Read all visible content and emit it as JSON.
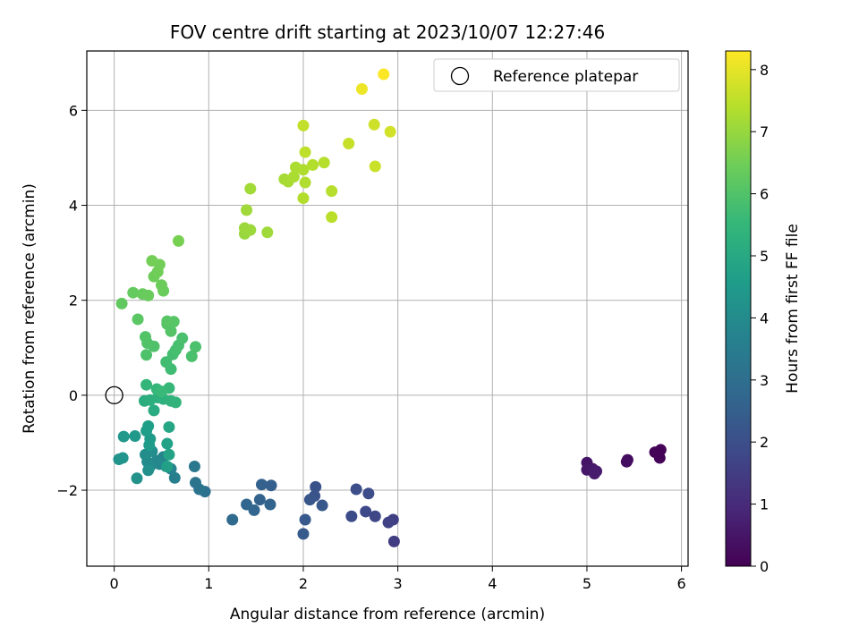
{
  "chart_data": {
    "type": "scatter",
    "title": "FOV centre drift starting at 2023/10/07 12:27:46",
    "xlabel": "Angular distance from reference (arcmin)",
    "ylabel": "Rotation from reference (arcmin)",
    "xlim": [
      -0.29,
      6.07
    ],
    "ylim": [
      -3.6,
      7.25
    ],
    "xticks": [
      "0",
      "1",
      "2",
      "3",
      "4",
      "5",
      "6"
    ],
    "yticks": [
      "−2",
      "0",
      "2",
      "4",
      "6"
    ],
    "grid": true,
    "legend": {
      "placement": "top-right",
      "label": "Reference platepar"
    },
    "reference_point": {
      "x": 0,
      "y": 0
    },
    "colorbar": {
      "label": "Hours from first FF file",
      "colormap": "viridis",
      "range": [
        0,
        8.3
      ],
      "ticks": [
        "0",
        "1",
        "2",
        "3",
        "4",
        "5",
        "6",
        "7",
        "8"
      ]
    },
    "points": [
      {
        "x": 5.78,
        "y": -1.15,
        "h": 0.05
      },
      {
        "x": 5.72,
        "y": -1.2,
        "h": 0.08
      },
      {
        "x": 5.77,
        "y": -1.32,
        "h": 0.1
      },
      {
        "x": 5.43,
        "y": -1.36,
        "h": 0.25
      },
      {
        "x": 5.42,
        "y": -1.4,
        "h": 0.28
      },
      {
        "x": 5.0,
        "y": -1.42,
        "h": 0.45
      },
      {
        "x": 5.0,
        "y": -1.57,
        "h": 0.5
      },
      {
        "x": 5.06,
        "y": -1.55,
        "h": 0.55
      },
      {
        "x": 5.1,
        "y": -1.6,
        "h": 0.6
      },
      {
        "x": 5.08,
        "y": -1.65,
        "h": 0.65
      },
      {
        "x": 2.96,
        "y": -3.08,
        "h": 1.5
      },
      {
        "x": 2.95,
        "y": -2.62,
        "h": 1.55
      },
      {
        "x": 2.9,
        "y": -2.68,
        "h": 1.62
      },
      {
        "x": 2.76,
        "y": -2.55,
        "h": 1.75
      },
      {
        "x": 2.66,
        "y": -2.45,
        "h": 1.82
      },
      {
        "x": 2.51,
        "y": -2.55,
        "h": 1.9
      },
      {
        "x": 2.69,
        "y": -2.07,
        "h": 1.95
      },
      {
        "x": 2.56,
        "y": -1.98,
        "h": 2.0
      },
      {
        "x": 2.13,
        "y": -1.93,
        "h": 2.1
      },
      {
        "x": 2.12,
        "y": -2.12,
        "h": 2.15
      },
      {
        "x": 2.07,
        "y": -2.2,
        "h": 2.2
      },
      {
        "x": 2.2,
        "y": -2.32,
        "h": 2.25
      },
      {
        "x": 2.02,
        "y": -2.62,
        "h": 2.3
      },
      {
        "x": 2.0,
        "y": -2.92,
        "h": 2.35
      },
      {
        "x": 1.66,
        "y": -1.9,
        "h": 2.5
      },
      {
        "x": 1.56,
        "y": -1.88,
        "h": 2.55
      },
      {
        "x": 1.54,
        "y": -2.2,
        "h": 2.6
      },
      {
        "x": 1.65,
        "y": -2.3,
        "h": 2.65
      },
      {
        "x": 1.48,
        "y": -2.42,
        "h": 2.7
      },
      {
        "x": 1.4,
        "y": -2.3,
        "h": 2.75
      },
      {
        "x": 1.25,
        "y": -2.62,
        "h": 2.85
      },
      {
        "x": 0.96,
        "y": -2.03,
        "h": 3.1
      },
      {
        "x": 0.9,
        "y": -1.98,
        "h": 3.15
      },
      {
        "x": 0.86,
        "y": -1.84,
        "h": 3.2
      },
      {
        "x": 0.85,
        "y": -1.5,
        "h": 3.3
      },
      {
        "x": 0.64,
        "y": -1.74,
        "h": 3.6
      },
      {
        "x": 0.6,
        "y": -1.55,
        "h": 3.7
      },
      {
        "x": 0.55,
        "y": -1.5,
        "h": 3.75
      },
      {
        "x": 0.52,
        "y": -1.3,
        "h": 3.8
      },
      {
        "x": 0.48,
        "y": -1.45,
        "h": 3.85
      },
      {
        "x": 0.45,
        "y": -1.38,
        "h": 3.9
      },
      {
        "x": 0.38,
        "y": -1.5,
        "h": 3.95
      },
      {
        "x": 0.35,
        "y": -1.4,
        "h": 4.0
      },
      {
        "x": 0.33,
        "y": -1.25,
        "h": 4.05
      },
      {
        "x": 0.4,
        "y": -1.18,
        "h": 4.1
      },
      {
        "x": 0.36,
        "y": -1.58,
        "h": 4.15
      },
      {
        "x": 0.24,
        "y": -1.75,
        "h": 4.2
      },
      {
        "x": 0.05,
        "y": -1.35,
        "h": 4.25
      },
      {
        "x": 0.09,
        "y": -1.32,
        "h": 4.3
      },
      {
        "x": 0.1,
        "y": -0.87,
        "h": 4.4
      },
      {
        "x": 0.22,
        "y": -0.86,
        "h": 4.45
      },
      {
        "x": 0.37,
        "y": -1.05,
        "h": 4.5
      },
      {
        "x": 0.38,
        "y": -0.92,
        "h": 4.55
      },
      {
        "x": 0.34,
        "y": -0.75,
        "h": 4.6
      },
      {
        "x": 0.36,
        "y": -0.65,
        "h": 4.65
      },
      {
        "x": 0.56,
        "y": -1.02,
        "h": 4.75
      },
      {
        "x": 0.58,
        "y": -1.25,
        "h": 4.8
      },
      {
        "x": 0.56,
        "y": -1.5,
        "h": 4.7
      },
      {
        "x": 0.58,
        "y": -0.67,
        "h": 4.9
      },
      {
        "x": 0.42,
        "y": -0.32,
        "h": 5.1
      },
      {
        "x": 0.32,
        "y": -0.12,
        "h": 5.15
      },
      {
        "x": 0.38,
        "y": -0.1,
        "h": 5.2
      },
      {
        "x": 0.46,
        "y": -0.05,
        "h": 5.25
      },
      {
        "x": 0.52,
        "y": -0.08,
        "h": 5.3
      },
      {
        "x": 0.6,
        "y": -0.12,
        "h": 5.35
      },
      {
        "x": 0.65,
        "y": -0.15,
        "h": 5.4
      },
      {
        "x": 0.34,
        "y": 0.22,
        "h": 5.45
      },
      {
        "x": 0.45,
        "y": 0.13,
        "h": 5.5
      },
      {
        "x": 0.58,
        "y": 0.15,
        "h": 5.55
      },
      {
        "x": 0.5,
        "y": 0.08,
        "h": 5.6
      },
      {
        "x": 0.6,
        "y": 0.55,
        "h": 5.7
      },
      {
        "x": 0.55,
        "y": 0.7,
        "h": 5.75
      },
      {
        "x": 0.62,
        "y": 0.86,
        "h": 5.8
      },
      {
        "x": 0.65,
        "y": 0.95,
        "h": 5.82
      },
      {
        "x": 0.68,
        "y": 1.05,
        "h": 5.85
      },
      {
        "x": 0.72,
        "y": 1.2,
        "h": 5.88
      },
      {
        "x": 0.82,
        "y": 0.82,
        "h": 5.9
      },
      {
        "x": 0.86,
        "y": 1.02,
        "h": 5.92
      },
      {
        "x": 0.34,
        "y": 0.85,
        "h": 5.95
      },
      {
        "x": 0.42,
        "y": 1.03,
        "h": 5.97
      },
      {
        "x": 0.35,
        "y": 1.1,
        "h": 6.0
      },
      {
        "x": 0.33,
        "y": 1.23,
        "h": 6.02
      },
      {
        "x": 0.56,
        "y": 1.5,
        "h": 6.05
      },
      {
        "x": 0.6,
        "y": 1.35,
        "h": 6.07
      },
      {
        "x": 0.63,
        "y": 1.55,
        "h": 6.1
      },
      {
        "x": 0.56,
        "y": 1.56,
        "h": 6.12
      },
      {
        "x": 0.25,
        "y": 1.6,
        "h": 6.15
      },
      {
        "x": 0.08,
        "y": 1.93,
        "h": 6.25
      },
      {
        "x": 0.2,
        "y": 2.16,
        "h": 6.3
      },
      {
        "x": 0.3,
        "y": 2.13,
        "h": 6.35
      },
      {
        "x": 0.36,
        "y": 2.1,
        "h": 6.38
      },
      {
        "x": 0.52,
        "y": 2.2,
        "h": 6.4
      },
      {
        "x": 0.5,
        "y": 2.32,
        "h": 6.42
      },
      {
        "x": 0.42,
        "y": 2.5,
        "h": 6.45
      },
      {
        "x": 0.46,
        "y": 2.6,
        "h": 6.48
      },
      {
        "x": 0.48,
        "y": 2.75,
        "h": 6.5
      },
      {
        "x": 0.4,
        "y": 2.83,
        "h": 6.52
      },
      {
        "x": 0.68,
        "y": 3.25,
        "h": 6.6
      },
      {
        "x": 1.38,
        "y": 3.4,
        "h": 7.0
      },
      {
        "x": 1.4,
        "y": 3.45,
        "h": 7.02
      },
      {
        "x": 1.44,
        "y": 3.48,
        "h": 7.05
      },
      {
        "x": 1.38,
        "y": 3.52,
        "h": 7.07
      },
      {
        "x": 1.62,
        "y": 3.43,
        "h": 7.1
      },
      {
        "x": 1.4,
        "y": 3.9,
        "h": 7.12
      },
      {
        "x": 1.44,
        "y": 4.35,
        "h": 7.15
      },
      {
        "x": 1.8,
        "y": 4.55,
        "h": 7.2
      },
      {
        "x": 1.84,
        "y": 4.5,
        "h": 7.22
      },
      {
        "x": 1.9,
        "y": 4.6,
        "h": 7.25
      },
      {
        "x": 1.92,
        "y": 4.8,
        "h": 7.27
      },
      {
        "x": 2.0,
        "y": 4.75,
        "h": 7.3
      },
      {
        "x": 2.02,
        "y": 4.48,
        "h": 7.32
      },
      {
        "x": 2.0,
        "y": 4.15,
        "h": 7.35
      },
      {
        "x": 2.1,
        "y": 4.85,
        "h": 7.37
      },
      {
        "x": 2.22,
        "y": 4.9,
        "h": 7.4
      },
      {
        "x": 2.3,
        "y": 4.3,
        "h": 7.42
      },
      {
        "x": 2.3,
        "y": 3.75,
        "h": 7.45
      },
      {
        "x": 2.02,
        "y": 5.12,
        "h": 7.5
      },
      {
        "x": 2.0,
        "y": 5.68,
        "h": 7.55
      },
      {
        "x": 2.48,
        "y": 5.3,
        "h": 7.6
      },
      {
        "x": 2.76,
        "y": 4.82,
        "h": 7.65
      },
      {
        "x": 2.75,
        "y": 5.7,
        "h": 7.7
      },
      {
        "x": 2.92,
        "y": 5.55,
        "h": 7.75
      },
      {
        "x": 2.62,
        "y": 6.45,
        "h": 8.1
      },
      {
        "x": 2.85,
        "y": 6.76,
        "h": 8.28
      }
    ]
  }
}
